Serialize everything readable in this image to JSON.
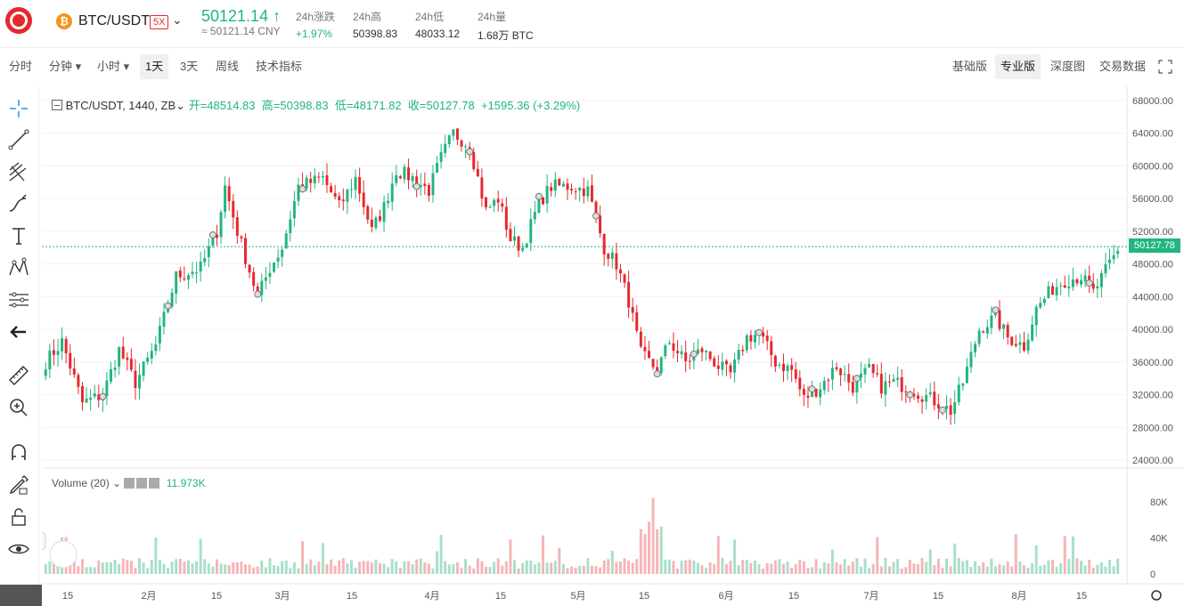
{
  "header": {
    "pair": "BTC/USDT",
    "leverage": "5X",
    "price": "50121.14",
    "price_cny": "≈ 50121.14 CNY",
    "stats": [
      {
        "label": "24h涨跌",
        "value": "+1.97%",
        "color": "#21b57f"
      },
      {
        "label": "24h高",
        "value": "50398.83",
        "color": "#333333"
      },
      {
        "label": "24h低",
        "value": "48033.12",
        "color": "#333333"
      },
      {
        "label": "24h量",
        "value": "1.68万 BTC",
        "color": "#333333"
      }
    ]
  },
  "toolbar": {
    "intervals": [
      "分时",
      "分钟",
      "小时",
      "1天",
      "3天",
      "周线",
      "技术指标"
    ],
    "active_interval": "1天",
    "views": [
      "基础版",
      "专业版",
      "深度图",
      "交易数据"
    ],
    "active_view": "专业版"
  },
  "legend": {
    "symbol": "BTC/USDT, 1440, ZB",
    "open": "开=48514.83",
    "high": "高=50398.83",
    "low": "低=48171.82",
    "close": "收=50127.78",
    "change": "+1595.36 (+3.29%)"
  },
  "volume": {
    "label": "Volume (20)",
    "value": "11.973K",
    "axis": [
      "80K",
      "40K",
      "0"
    ]
  },
  "price_axis": [
    "68000.00",
    "64000.00",
    "60000.00",
    "56000.00",
    "52000.00",
    "48000.00",
    "44000.00",
    "40000.00",
    "36000.00",
    "32000.00",
    "28000.00",
    "24000.00"
  ],
  "last_price_tag": "50127.78",
  "time_axis": [
    "15",
    "2月",
    "15",
    "3月",
    "15",
    "4月",
    "15",
    "5月",
    "15",
    "6月",
    "15",
    "7月",
    "15",
    "8月",
    "15"
  ],
  "colors": {
    "up": "#21b57f",
    "down": "#e6282e",
    "accent": "#21b57f"
  },
  "chart_data": {
    "type": "candlestick",
    "ylim": [
      24000,
      68000
    ],
    "anchors": [
      [
        0,
        36000
      ],
      [
        4,
        38500
      ],
      [
        9,
        31000
      ],
      [
        14,
        32000
      ],
      [
        18,
        37500
      ],
      [
        22,
        33500
      ],
      [
        27,
        38000
      ],
      [
        32,
        46500
      ],
      [
        38,
        47500
      ],
      [
        42,
        52000
      ],
      [
        44,
        57500
      ],
      [
        47,
        52000
      ],
      [
        52,
        44000
      ],
      [
        55,
        47500
      ],
      [
        58,
        50000
      ],
      [
        62,
        57500
      ],
      [
        68,
        58500
      ],
      [
        72,
        55000
      ],
      [
        76,
        58500
      ],
      [
        80,
        52000
      ],
      [
        83,
        55000
      ],
      [
        86,
        59500
      ],
      [
        90,
        58500
      ],
      [
        94,
        57000
      ],
      [
        97,
        61000
      ],
      [
        100,
        64000
      ],
      [
        104,
        62500
      ],
      [
        108,
        54500
      ],
      [
        111,
        56000
      ],
      [
        114,
        51000
      ],
      [
        117,
        50000
      ],
      [
        121,
        55500
      ],
      [
        124,
        57500
      ],
      [
        129,
        57500
      ],
      [
        133,
        57000
      ],
      [
        137,
        50000
      ],
      [
        140,
        48000
      ],
      [
        143,
        43500
      ],
      [
        146,
        37000
      ],
      [
        150,
        35000
      ],
      [
        153,
        38500
      ],
      [
        157,
        36000
      ],
      [
        161,
        37500
      ],
      [
        165,
        35500
      ],
      [
        168,
        34500
      ],
      [
        172,
        39000
      ],
      [
        175,
        39500
      ],
      [
        179,
        36000
      ],
      [
        183,
        35000
      ],
      [
        186,
        31500
      ],
      [
        190,
        33000
      ],
      [
        194,
        35500
      ],
      [
        198,
        33000
      ],
      [
        202,
        35000
      ],
      [
        205,
        33000
      ],
      [
        208,
        33500
      ],
      [
        211,
        33000
      ],
      [
        215,
        32000
      ],
      [
        219,
        31000
      ],
      [
        222,
        30000
      ],
      [
        225,
        33500
      ],
      [
        229,
        40000
      ],
      [
        233,
        41500
      ],
      [
        236,
        39000
      ],
      [
        240,
        38000
      ],
      [
        243,
        42500
      ],
      [
        247,
        45000
      ],
      [
        250,
        46000
      ],
      [
        254,
        46500
      ],
      [
        257,
        44500
      ],
      [
        261,
        48000
      ],
      [
        263,
        49600
      ]
    ]
  }
}
